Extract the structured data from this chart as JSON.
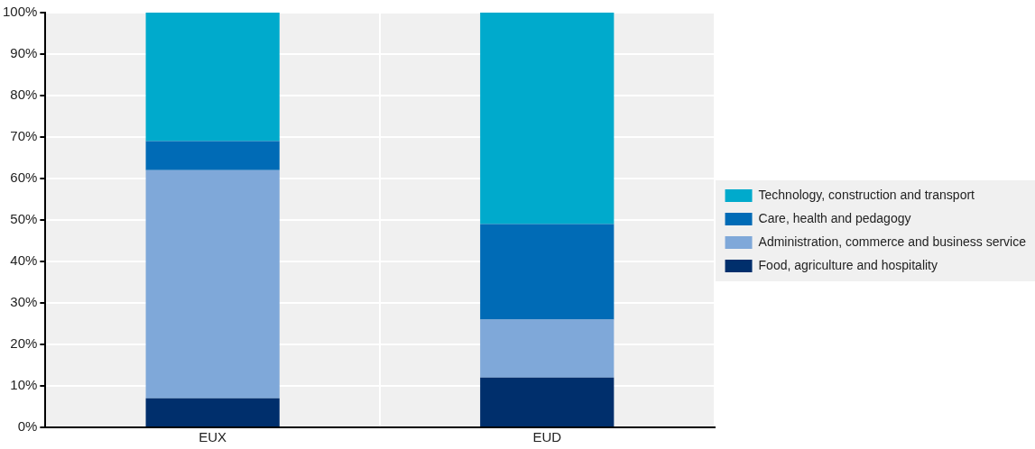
{
  "chart_data": {
    "type": "bar",
    "stacked": true,
    "categories": [
      "EUX",
      "EUD"
    ],
    "series": [
      {
        "name": "Food, agriculture and hospitality",
        "color": "#002f6c",
        "values": [
          7,
          12
        ]
      },
      {
        "name": "Administration, commerce and business service",
        "color": "#7fa8d9",
        "values": [
          55,
          14
        ]
      },
      {
        "name": "Care, health and pedagogy",
        "color": "#006bb6",
        "values": [
          7,
          23
        ]
      },
      {
        "name": "Technology, construction and transport",
        "color": "#00aacc",
        "values": [
          31,
          51
        ]
      }
    ],
    "ylim": [
      0,
      100
    ],
    "yticks": [
      {
        "value": 0,
        "label": "0%"
      },
      {
        "value": 10,
        "label": "10%"
      },
      {
        "value": 20,
        "label": "20%"
      },
      {
        "value": 30,
        "label": "30%"
      },
      {
        "value": 40,
        "label": "40%"
      },
      {
        "value": 50,
        "label": "50%"
      },
      {
        "value": 60,
        "label": "60%"
      },
      {
        "value": 70,
        "label": "70%"
      },
      {
        "value": 80,
        "label": "80%"
      },
      {
        "value": 90,
        "label": "90%"
      },
      {
        "value": 100,
        "label": "100%"
      }
    ],
    "grid": true,
    "legend": "right"
  }
}
